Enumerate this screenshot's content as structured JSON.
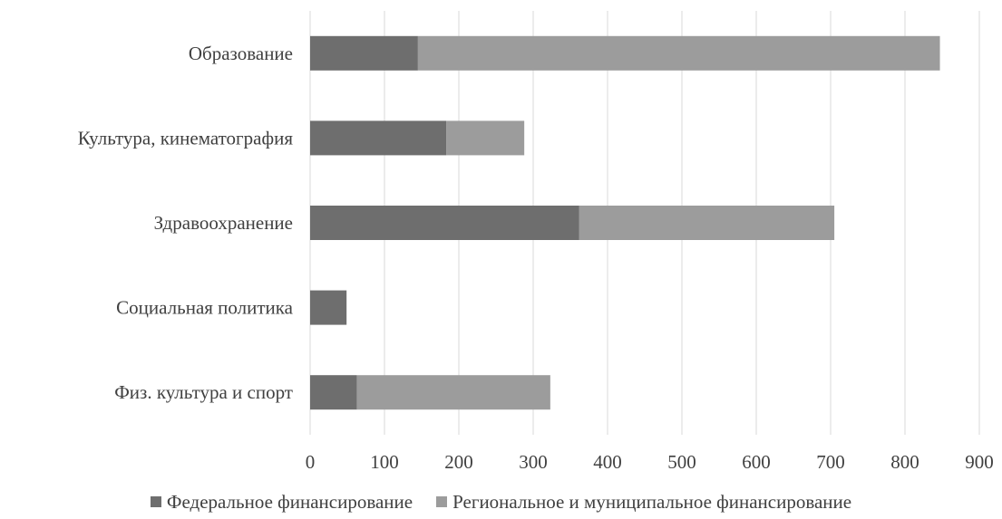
{
  "chart_data": {
    "type": "bar",
    "orientation": "horizontal",
    "stacked": true,
    "title": "",
    "xlabel": "",
    "ylabel": "",
    "categories": [
      "Образование",
      "Культура, кинематография",
      "Здравоохранение",
      "Социальная политика",
      "Физ. культура и спорт"
    ],
    "series": [
      {
        "name": "Федеральное финансирование",
        "color": "#6e6e6e",
        "values": [
          145,
          183,
          362,
          49,
          63
        ]
      },
      {
        "name": "Региональное и муниципальное финансирование",
        "color": "#9c9c9c",
        "values": [
          702,
          105,
          343,
          0,
          260
        ]
      }
    ],
    "xlim": [
      0,
      900
    ],
    "x_ticks": [
      "0",
      "100",
      "200",
      "300",
      "400",
      "500",
      "600",
      "700",
      "800",
      "900"
    ],
    "grid": "vertical",
    "legend_position": "bottom"
  }
}
